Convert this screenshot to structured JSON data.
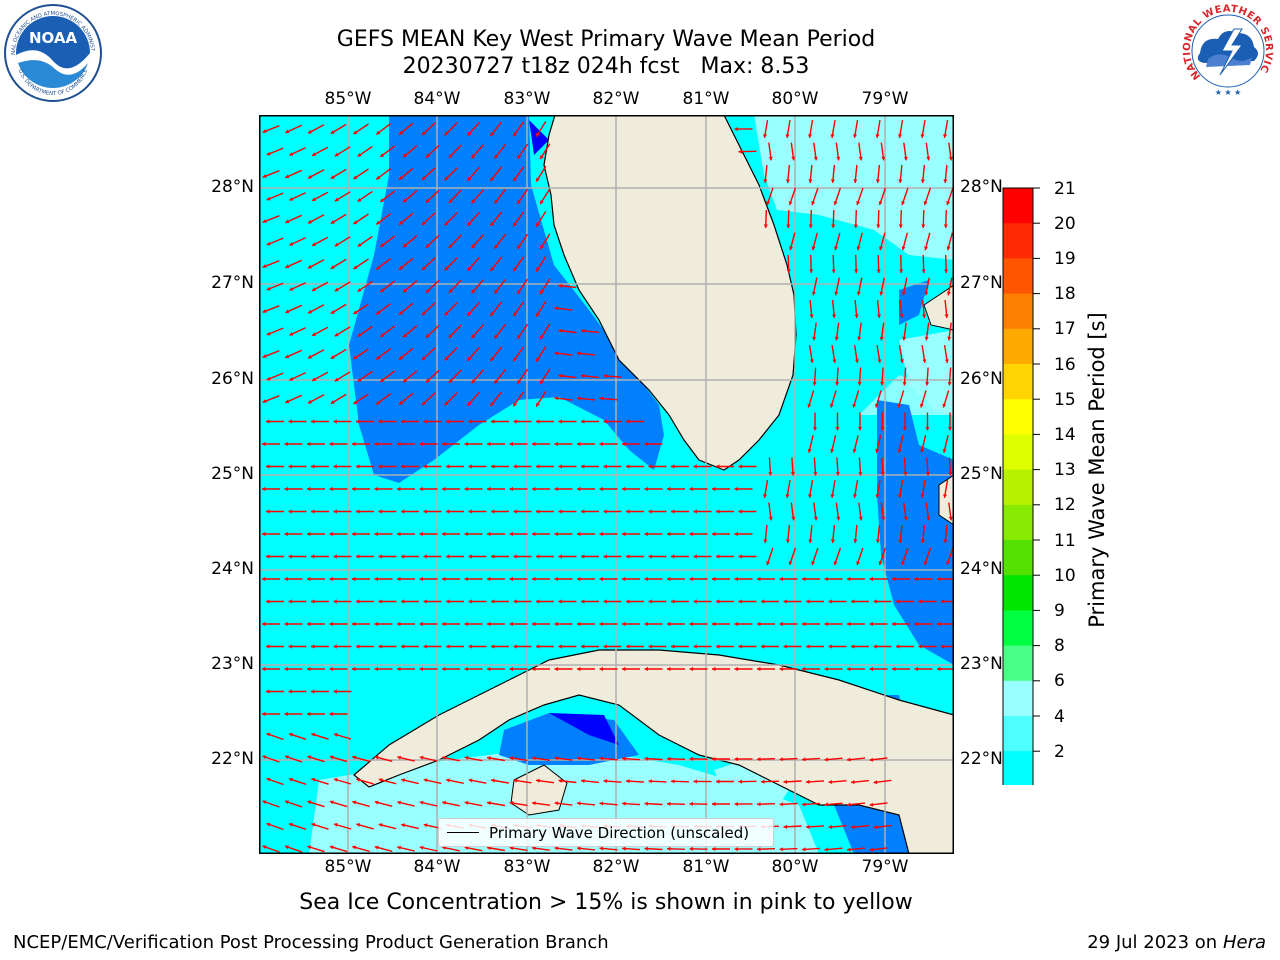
{
  "title_line1": "GEFS MEAN Key West Primary Wave Mean Period",
  "title_line2": "20230727 t18z 024h fcst   Max: 8.53",
  "lon_labels": [
    "85°W",
    "84°W",
    "83°W",
    "82°W",
    "81°W",
    "80°W",
    "79°W"
  ],
  "lat_labels": [
    "28°N",
    "27°N",
    "26°N",
    "25°N",
    "24°N",
    "23°N",
    "22°N"
  ],
  "colorbar": {
    "title": "Primary Wave Mean Period [s]",
    "ticks": [
      "21",
      "20",
      "19",
      "18",
      "17",
      "16",
      "15",
      "14",
      "13",
      "12",
      "11",
      "10",
      "9",
      "8",
      "6",
      "4",
      "2"
    ],
    "colors": [
      "#ff0000",
      "#ff2a00",
      "#ff5500",
      "#ff8000",
      "#ffaa00",
      "#ffd400",
      "#ffff00",
      "#ddff00",
      "#b9f200",
      "#87ea00",
      "#55e100",
      "#00e600",
      "#00ff40",
      "#4cff86",
      "#99ffff",
      "#4dffff",
      "#00ffff",
      "#0080ff",
      "#0000ff"
    ]
  },
  "legend": {
    "label": "Primary Wave Direction (unscaled)"
  },
  "subtitle": "Sea Ice Concentration > 15% is shown in pink to yellow",
  "footer": {
    "left": "NCEP/EMC/Verification Post Processing Product Generation Branch",
    "right_prefix": "29 Jul 2023 on ",
    "right_italic": "Hera"
  },
  "logos": {
    "noaa": {
      "text": "NOAA",
      "ring_top": "NATIONAL OCEANIC AND ATMOSPHERIC ADMINISTRATION",
      "ring_bottom": "U.S. DEPARTMENT OF COMMERCE"
    },
    "nws": {
      "ring": "NATIONAL WEATHER SERVICE"
    }
  },
  "colors": {
    "land": "#efecdc",
    "wave_6_8": "#00ffff",
    "wave_4_6": "#0080ff",
    "wave_2_4": "#0000ff",
    "wave_8_9": "#99ffff",
    "arrow": "#ff0000",
    "grid": "#b0b0b0"
  }
}
